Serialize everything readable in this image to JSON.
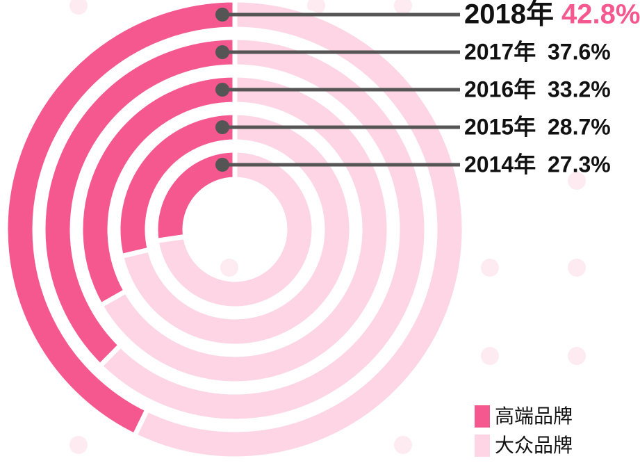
{
  "chart_data": {
    "type": "radial_bar",
    "categories": [
      "2018年",
      "2017年",
      "2016年",
      "2015年",
      "2014年"
    ],
    "series": [
      {
        "name": "高端品牌",
        "color": "#f5578f",
        "values": [
          42.8,
          37.6,
          33.2,
          28.7,
          27.3
        ],
        "value_labels": [
          "42.8%",
          "37.6%",
          "33.2%",
          "28.7%",
          "27.3%"
        ]
      },
      {
        "name": "大众品牌",
        "color": "#fdd5e4",
        "values": [
          57.2,
          62.4,
          66.8,
          71.3,
          72.7
        ]
      }
    ]
  }
}
